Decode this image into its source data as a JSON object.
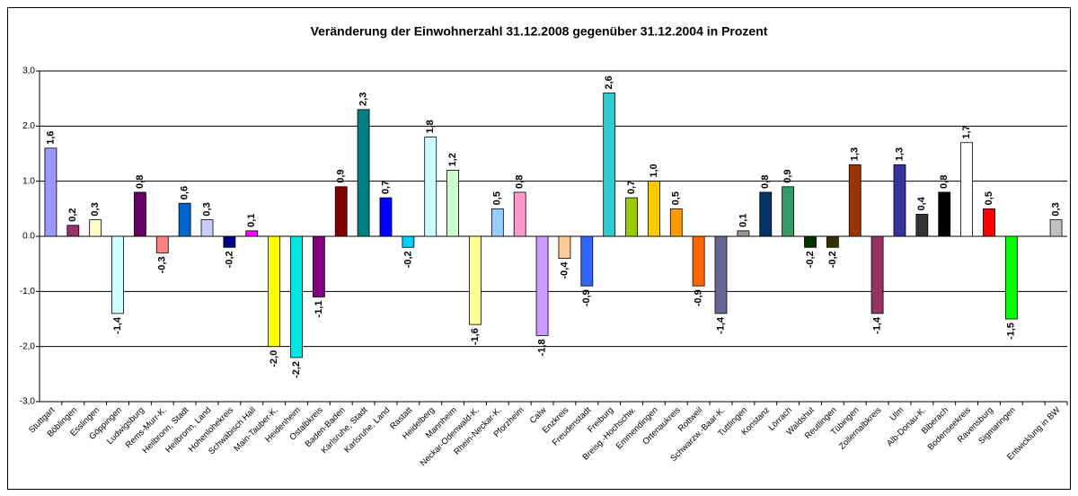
{
  "chart_data": {
    "type": "bar",
    "title": "Veränderung der Einwohnerzahl 31.12.2008 gegenüber 31.12.2004 in Prozent",
    "categories": [
      "Stuttgart",
      "Böblingen",
      "Esslingen",
      "Göppingen",
      "Ludwigsburg",
      "Rems-Murr-K.",
      "Heilbronn, Stadt",
      "Heilbronn, Land",
      "Hohenlohekreis",
      "Schwäbisch Hall",
      "Main-Tauber-K.",
      "Heidenheim",
      "Ostalbkreis",
      "Baden-Baden",
      "Karlsruhe, Stadt",
      "Karlsruhe, Land",
      "Rastatt",
      "Heidelberg",
      "Mannheim",
      "Neckar-Odenwald-K.",
      "Rhein-Neckar-K.",
      "Pforzheim",
      "Calw",
      "Enzkreis",
      "Freudenstadt",
      "Freiburg",
      "Breisg.-Hochschw.",
      "Emmendingen",
      "Ortenaukreis",
      "Rottweil",
      "Schwarzw.-Baar-K.",
      "Tuttlingen",
      "Konstanz",
      "Lörrach",
      "Waldshut",
      "Reutlingen",
      "Tübingen",
      "Zollernalbkreis",
      "Ulm",
      "Alb-Donau-K.",
      "Biberach",
      "Bodenseekreis",
      "Ravensburg",
      "Sigmaringen",
      null,
      "Entwicklung in BW"
    ],
    "values": [
      1.6,
      0.2,
      0.3,
      -1.4,
      0.8,
      -0.3,
      0.6,
      0.3,
      -0.2,
      0.1,
      -2.0,
      -2.2,
      -1.1,
      0.9,
      2.3,
      0.7,
      -0.2,
      1.8,
      1.2,
      -1.6,
      0.5,
      0.8,
      -1.8,
      -0.4,
      -0.9,
      2.6,
      0.7,
      1.0,
      0.5,
      -0.9,
      -1.4,
      0.1,
      0.8,
      0.9,
      -0.2,
      -0.2,
      1.3,
      -1.4,
      1.3,
      0.4,
      0.8,
      1.7,
      0.5,
      -1.5,
      null,
      0.3
    ],
    "value_labels": [
      "1,6",
      "0,2",
      "0,3",
      "-1,4",
      "0,8",
      "-0,3",
      "0,6",
      "0,3",
      "-0,2",
      "0,1",
      "-2,0",
      "-2,2",
      "-1,1",
      "0,9",
      "2,3",
      "0,7",
      "-0,2",
      "1,8",
      "1,2",
      "-1,6",
      "0,5",
      "0,8",
      "-1,8",
      "-0,4",
      "-0,9",
      "2,6",
      "0,7",
      "1,0",
      "0,5",
      "-0,9",
      "-1,4",
      "0,1",
      "0,8",
      "0,9",
      "-0,2",
      "-0,2",
      "1,3",
      "-1,4",
      "1,3",
      "0,4",
      "0,8",
      "1,7",
      "0,5",
      "-1,5",
      null,
      "0,3"
    ],
    "colors": [
      "#9999ff",
      "#993366",
      "#ffffcc",
      "#ccffff",
      "#660066",
      "#ff8080",
      "#0066cc",
      "#ccccff",
      "#000080",
      "#ff00ff",
      "#ffff00",
      "#00e5e5",
      "#800080",
      "#800000",
      "#008080",
      "#0000ff",
      "#00ccff",
      "#ccffff",
      "#ccffcc",
      "#ffff99",
      "#99ccff",
      "#ff99cc",
      "#cc99ff",
      "#ffcc99",
      "#3366ff",
      "#33cccc",
      "#99cc00",
      "#ffcc00",
      "#ff9900",
      "#ff6600",
      "#666699",
      "#969696",
      "#003366",
      "#339966",
      "#003300",
      "#333300",
      "#993300",
      "#993366",
      "#333399",
      "#333333",
      "#000000",
      "#ffffff",
      "#ff0000",
      "#00ff00",
      null,
      "#c0c0c0"
    ],
    "ylim": [
      -3,
      3
    ],
    "yticks": [
      {
        "value": -3,
        "label": "-3,0"
      },
      {
        "value": -2,
        "label": "-2,0"
      },
      {
        "value": -1,
        "label": "-1,0"
      },
      {
        "value": 0,
        "label": "0.0"
      },
      {
        "value": 1,
        "label": "1.0"
      },
      {
        "value": 2,
        "label": "2.0"
      },
      {
        "value": 3,
        "label": "3,0"
      }
    ],
    "grid": true
  }
}
